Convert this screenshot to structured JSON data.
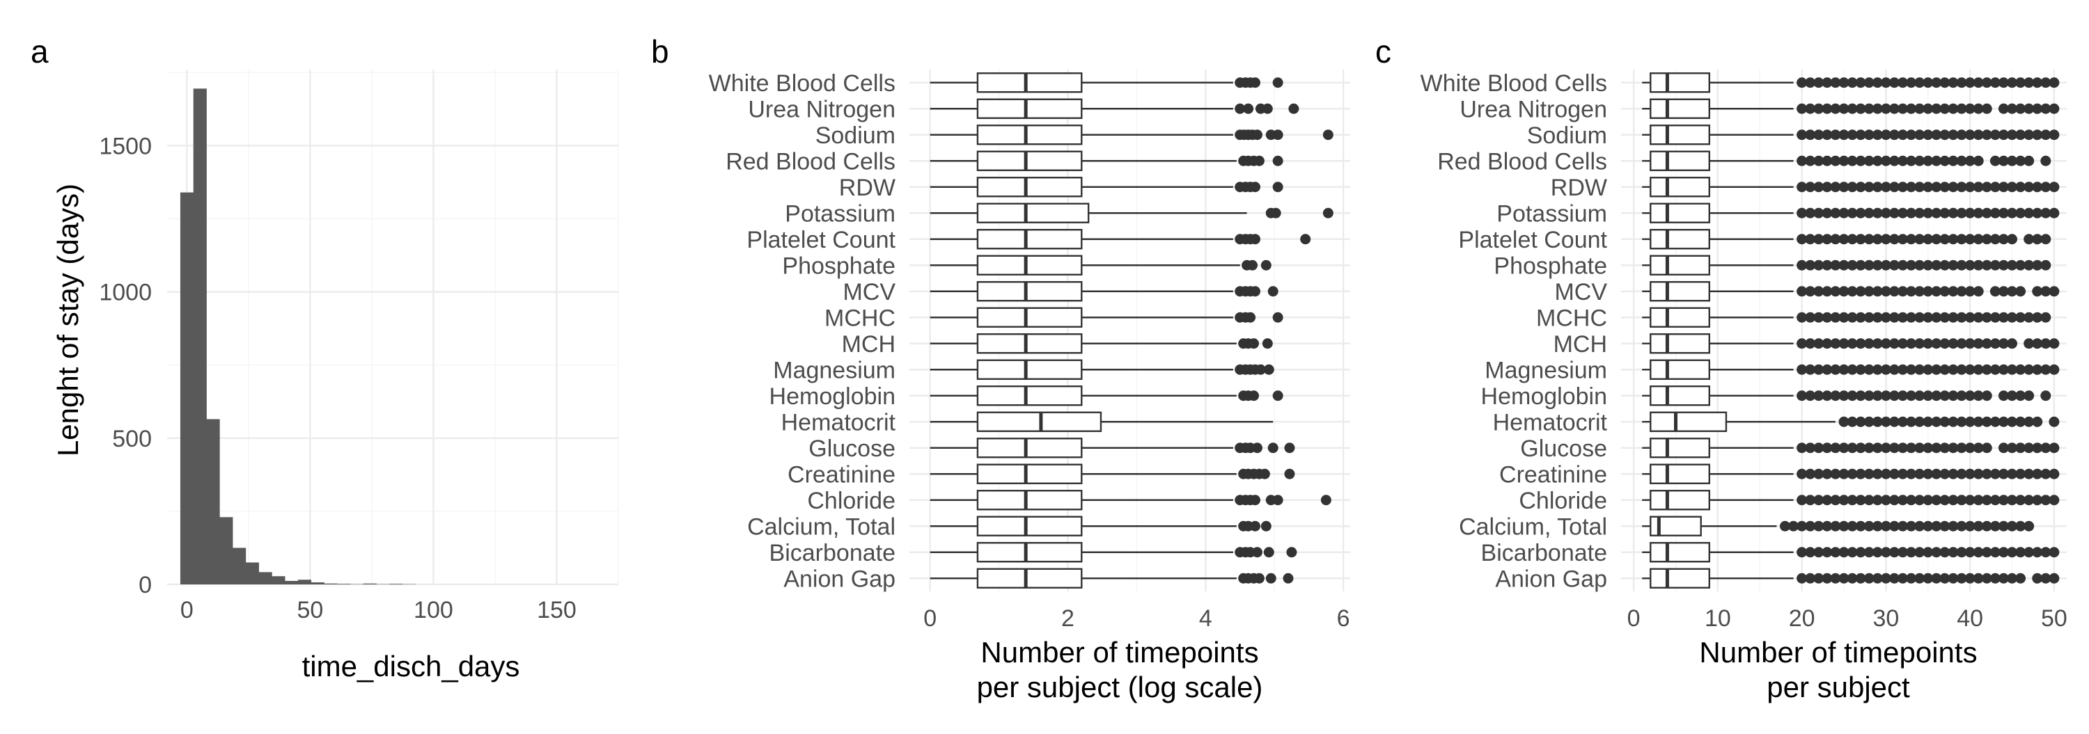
{
  "chart_data": [
    {
      "panel": "a",
      "type": "bar",
      "xlabel": "time_disch_days",
      "ylabel": "Lenght of stay (days)",
      "xlim": [
        -8,
        175
      ],
      "ylim": [
        0,
        1760
      ],
      "x_ticks": [
        0,
        50,
        100,
        150
      ],
      "y_ticks": [
        0,
        500,
        1000,
        1500
      ],
      "bin_width": 5.3,
      "bins": [
        {
          "x": 0,
          "y": 1340
        },
        {
          "x": 5.3,
          "y": 1695
        },
        {
          "x": 10.6,
          "y": 565
        },
        {
          "x": 15.9,
          "y": 230
        },
        {
          "x": 21.2,
          "y": 125
        },
        {
          "x": 26.5,
          "y": 75
        },
        {
          "x": 31.8,
          "y": 42
        },
        {
          "x": 37.1,
          "y": 28
        },
        {
          "x": 42.4,
          "y": 12
        },
        {
          "x": 47.7,
          "y": 16
        },
        {
          "x": 53.0,
          "y": 7
        },
        {
          "x": 58.3,
          "y": 3
        },
        {
          "x": 63.6,
          "y": 2
        },
        {
          "x": 68.9,
          "y": 1
        },
        {
          "x": 74.2,
          "y": 3
        },
        {
          "x": 79.5,
          "y": 1
        },
        {
          "x": 84.8,
          "y": 2
        },
        {
          "x": 90.1,
          "y": 1
        }
      ]
    },
    {
      "panel": "b",
      "type": "box",
      "xlabel": [
        "Number of timepoints",
        "per subject (log scale)"
      ],
      "xlim": [
        -0.3,
        6.1
      ],
      "x_ticks": [
        0,
        2,
        4,
        6
      ],
      "categories": [
        "White Blood Cells",
        "Urea Nitrogen",
        "Sodium",
        "Red Blood Cells",
        "RDW",
        "Potassium",
        "Platelet Count",
        "Phosphate",
        "MCV",
        "MCHC",
        "MCH",
        "Magnesium",
        "Hemoglobin",
        "Hematocrit",
        "Glucose",
        "Creatinine",
        "Chloride",
        "Calcium, Total",
        "Bicarbonate",
        "Anion Gap"
      ],
      "boxes": [
        {
          "lo": 0.0,
          "q1": 0.69,
          "med": 1.39,
          "q3": 2.2,
          "hi": 4.4,
          "out": [
            4.5,
            4.58,
            4.65,
            4.72,
            5.05
          ]
        },
        {
          "lo": 0.0,
          "q1": 0.69,
          "med": 1.39,
          "q3": 2.2,
          "hi": 4.4,
          "out": [
            4.5,
            4.62,
            4.8,
            4.9,
            5.28
          ]
        },
        {
          "lo": 0.0,
          "q1": 0.69,
          "med": 1.39,
          "q3": 2.2,
          "hi": 4.4,
          "out": [
            4.5,
            4.56,
            4.62,
            4.68,
            4.75,
            4.95,
            5.05,
            5.78
          ]
        },
        {
          "lo": 0.0,
          "q1": 0.69,
          "med": 1.39,
          "q3": 2.2,
          "hi": 4.45,
          "out": [
            4.55,
            4.62,
            4.7,
            4.78,
            5.05
          ]
        },
        {
          "lo": 0.0,
          "q1": 0.69,
          "med": 1.39,
          "q3": 2.2,
          "hi": 4.4,
          "out": [
            4.5,
            4.58,
            4.65,
            4.72,
            5.05
          ]
        },
        {
          "lo": 0.0,
          "q1": 0.69,
          "med": 1.39,
          "q3": 2.3,
          "hi": 4.6,
          "out": [
            4.95,
            5.02,
            5.78
          ]
        },
        {
          "lo": 0.0,
          "q1": 0.69,
          "med": 1.39,
          "q3": 2.2,
          "hi": 4.4,
          "out": [
            4.5,
            4.58,
            4.65,
            4.72,
            5.45
          ]
        },
        {
          "lo": 0.0,
          "q1": 0.69,
          "med": 1.39,
          "q3": 2.2,
          "hi": 4.5,
          "out": [
            4.6,
            4.68,
            4.88
          ]
        },
        {
          "lo": 0.0,
          "q1": 0.69,
          "med": 1.39,
          "q3": 2.2,
          "hi": 4.4,
          "out": [
            4.5,
            4.58,
            4.65,
            4.72,
            4.98
          ]
        },
        {
          "lo": 0.0,
          "q1": 0.69,
          "med": 1.39,
          "q3": 2.2,
          "hi": 4.4,
          "out": [
            4.5,
            4.58,
            4.65,
            5.05
          ]
        },
        {
          "lo": 0.0,
          "q1": 0.69,
          "med": 1.39,
          "q3": 2.2,
          "hi": 4.45,
          "out": [
            4.55,
            4.62,
            4.7,
            4.9
          ]
        },
        {
          "lo": 0.0,
          "q1": 0.69,
          "med": 1.39,
          "q3": 2.2,
          "hi": 4.4,
          "out": [
            4.5,
            4.58,
            4.65,
            4.72,
            4.8,
            4.92
          ]
        },
        {
          "lo": 0.0,
          "q1": 0.69,
          "med": 1.39,
          "q3": 2.2,
          "hi": 4.45,
          "out": [
            4.55,
            4.62,
            4.7,
            5.05
          ]
        },
        {
          "lo": 0.0,
          "q1": 0.69,
          "med": 1.61,
          "q3": 2.48,
          "hi": 4.98,
          "out": []
        },
        {
          "lo": 0.0,
          "q1": 0.69,
          "med": 1.39,
          "q3": 2.2,
          "hi": 4.4,
          "out": [
            4.5,
            4.58,
            4.65,
            4.75,
            4.98,
            5.22
          ]
        },
        {
          "lo": 0.0,
          "q1": 0.69,
          "med": 1.39,
          "q3": 2.2,
          "hi": 4.45,
          "out": [
            4.55,
            4.62,
            4.7,
            4.78,
            4.86,
            5.22
          ]
        },
        {
          "lo": 0.0,
          "q1": 0.69,
          "med": 1.39,
          "q3": 2.2,
          "hi": 4.4,
          "out": [
            4.5,
            4.58,
            4.65,
            4.72,
            4.95,
            5.05,
            5.75
          ]
        },
        {
          "lo": 0.0,
          "q1": 0.69,
          "med": 1.39,
          "q3": 2.2,
          "hi": 4.45,
          "out": [
            4.55,
            4.62,
            4.72,
            4.88
          ]
        },
        {
          "lo": 0.0,
          "q1": 0.69,
          "med": 1.39,
          "q3": 2.2,
          "hi": 4.4,
          "out": [
            4.5,
            4.58,
            4.65,
            4.75,
            4.92,
            5.25
          ]
        },
        {
          "lo": 0.0,
          "q1": 0.69,
          "med": 1.39,
          "q3": 2.2,
          "hi": 4.45,
          "out": [
            4.55,
            4.62,
            4.7,
            4.78,
            4.95,
            5.2
          ]
        }
      ]
    },
    {
      "panel": "c",
      "type": "box",
      "xlabel": [
        "Number of timepoints",
        "per subject"
      ],
      "xlim": [
        -1.5,
        51.5
      ],
      "x_ticks": [
        0,
        10,
        20,
        30,
        40,
        50
      ],
      "categories": [
        "White Blood Cells",
        "Urea Nitrogen",
        "Sodium",
        "Red Blood Cells",
        "RDW",
        "Potassium",
        "Platelet Count",
        "Phosphate",
        "MCV",
        "MCHC",
        "MCH",
        "Magnesium",
        "Hemoglobin",
        "Hematocrit",
        "Glucose",
        "Creatinine",
        "Chloride",
        "Calcium, Total",
        "Bicarbonate",
        "Anion Gap"
      ],
      "boxes": [
        {
          "lo": 1,
          "q1": 2,
          "med": 4,
          "q3": 9,
          "hi": 19,
          "out_ranges": [
            [
              20,
              50
            ]
          ]
        },
        {
          "lo": 1,
          "q1": 2,
          "med": 4,
          "q3": 9,
          "hi": 19,
          "out_ranges": [
            [
              20,
              42
            ],
            [
              44,
              50
            ]
          ]
        },
        {
          "lo": 1,
          "q1": 2,
          "med": 4,
          "q3": 9,
          "hi": 19,
          "out_ranges": [
            [
              20,
              50
            ]
          ]
        },
        {
          "lo": 1,
          "q1": 2,
          "med": 4,
          "q3": 9,
          "hi": 19,
          "out_ranges": [
            [
              20,
              41
            ],
            [
              43,
              47
            ],
            [
              49,
              49
            ]
          ]
        },
        {
          "lo": 1,
          "q1": 2,
          "med": 4,
          "q3": 9,
          "hi": 19,
          "out_ranges": [
            [
              20,
              50
            ]
          ]
        },
        {
          "lo": 1,
          "q1": 2,
          "med": 4,
          "q3": 9,
          "hi": 19,
          "out_ranges": [
            [
              20,
              50
            ]
          ]
        },
        {
          "lo": 1,
          "q1": 2,
          "med": 4,
          "q3": 9,
          "hi": 19,
          "out_ranges": [
            [
              20,
              45
            ],
            [
              47,
              49
            ]
          ]
        },
        {
          "lo": 1,
          "q1": 2,
          "med": 4,
          "q3": 9,
          "hi": 19,
          "out_ranges": [
            [
              20,
              49
            ]
          ]
        },
        {
          "lo": 1,
          "q1": 2,
          "med": 4,
          "q3": 9,
          "hi": 19,
          "out_ranges": [
            [
              20,
              41
            ],
            [
              43,
              46
            ],
            [
              48,
              50
            ]
          ]
        },
        {
          "lo": 1,
          "q1": 2,
          "med": 4,
          "q3": 9,
          "hi": 19,
          "out_ranges": [
            [
              20,
              49
            ]
          ]
        },
        {
          "lo": 1,
          "q1": 2,
          "med": 4,
          "q3": 9,
          "hi": 19,
          "out_ranges": [
            [
              20,
              45
            ],
            [
              47,
              50
            ]
          ]
        },
        {
          "lo": 1,
          "q1": 2,
          "med": 4,
          "q3": 9,
          "hi": 19,
          "out_ranges": [
            [
              20,
              50
            ]
          ]
        },
        {
          "lo": 1,
          "q1": 2,
          "med": 4,
          "q3": 9,
          "hi": 19,
          "out_ranges": [
            [
              20,
              42
            ],
            [
              44,
              47
            ],
            [
              49,
              49
            ]
          ]
        },
        {
          "lo": 1,
          "q1": 2,
          "med": 5,
          "q3": 11,
          "hi": 24,
          "out_ranges": [
            [
              25,
              48
            ],
            [
              50,
              50
            ]
          ]
        },
        {
          "lo": 1,
          "q1": 2,
          "med": 4,
          "q3": 9,
          "hi": 19,
          "out_ranges": [
            [
              20,
              42
            ],
            [
              44,
              50
            ]
          ]
        },
        {
          "lo": 1,
          "q1": 2,
          "med": 4,
          "q3": 9,
          "hi": 19,
          "out_ranges": [
            [
              20,
              50
            ]
          ]
        },
        {
          "lo": 1,
          "q1": 2,
          "med": 4,
          "q3": 9,
          "hi": 19,
          "out_ranges": [
            [
              20,
              50
            ]
          ]
        },
        {
          "lo": 1,
          "q1": 2,
          "med": 3,
          "q3": 8,
          "hi": 17,
          "out_ranges": [
            [
              18,
              47
            ]
          ]
        },
        {
          "lo": 1,
          "q1": 2,
          "med": 4,
          "q3": 9,
          "hi": 19,
          "out_ranges": [
            [
              20,
              50
            ]
          ]
        },
        {
          "lo": 1,
          "q1": 2,
          "med": 4,
          "q3": 9,
          "hi": 19,
          "out_ranges": [
            [
              20,
              46
            ],
            [
              48,
              50
            ]
          ]
        }
      ]
    }
  ]
}
